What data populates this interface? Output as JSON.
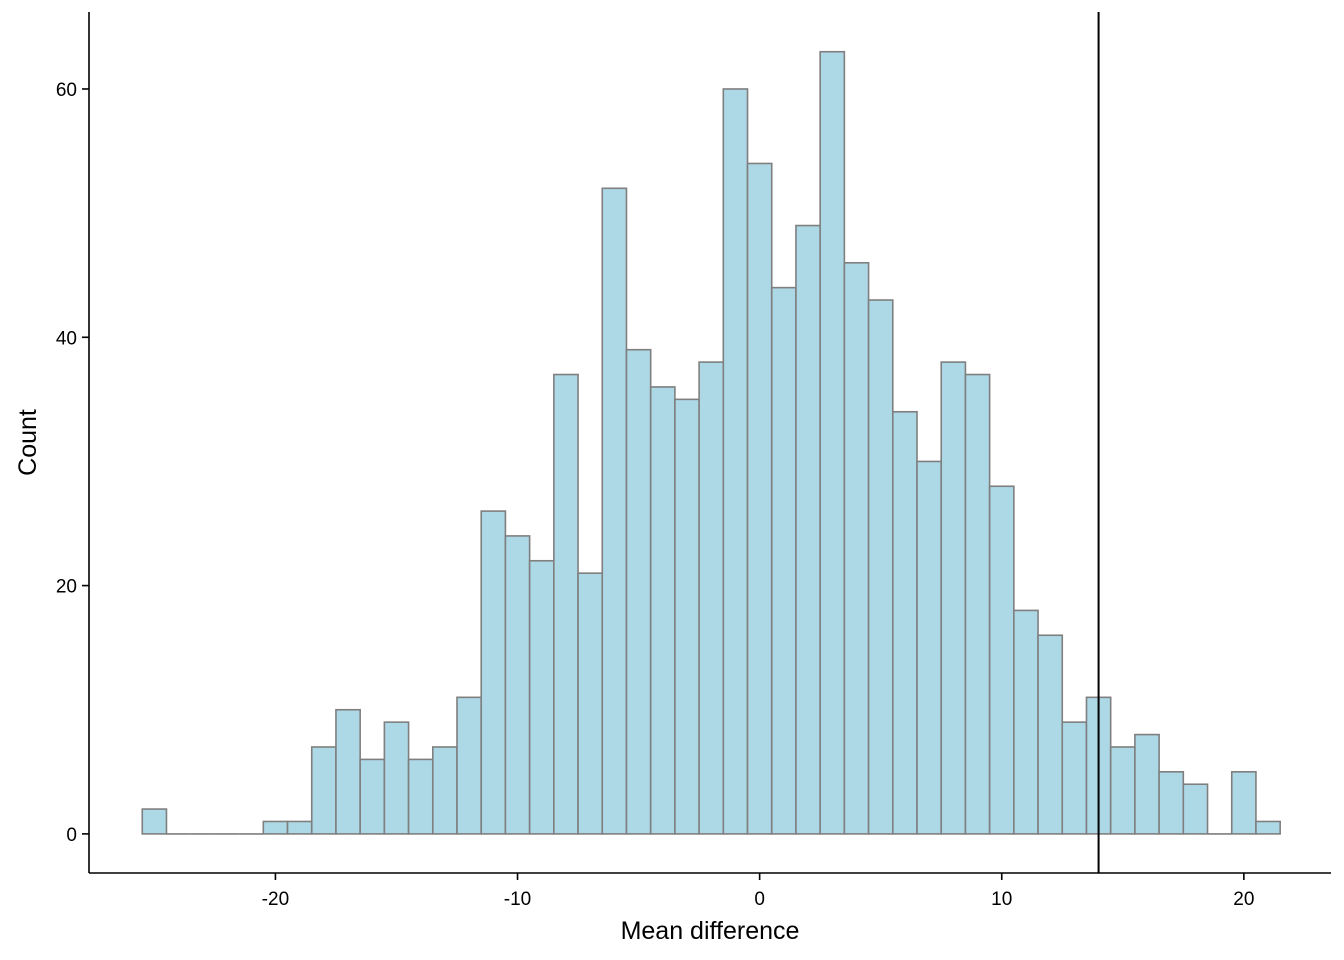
{
  "chart_data": {
    "type": "bar",
    "subtype": "histogram",
    "title": "",
    "xlabel": "Mean difference",
    "ylabel": "Count",
    "bin_width": 1,
    "bins": [
      {
        "x": -25,
        "count": 2
      },
      {
        "x": -24,
        "count": 0
      },
      {
        "x": -23,
        "count": 0
      },
      {
        "x": -22,
        "count": 0
      },
      {
        "x": -21,
        "count": 0
      },
      {
        "x": -20,
        "count": 1
      },
      {
        "x": -19,
        "count": 1
      },
      {
        "x": -18,
        "count": 7
      },
      {
        "x": -17,
        "count": 10
      },
      {
        "x": -16,
        "count": 6
      },
      {
        "x": -15,
        "count": 9
      },
      {
        "x": -14,
        "count": 6
      },
      {
        "x": -13,
        "count": 7
      },
      {
        "x": -12,
        "count": 11
      },
      {
        "x": -11,
        "count": 26
      },
      {
        "x": -10,
        "count": 24
      },
      {
        "x": -9,
        "count": 22
      },
      {
        "x": -8,
        "count": 37
      },
      {
        "x": -7,
        "count": 21
      },
      {
        "x": -6,
        "count": 52
      },
      {
        "x": -5,
        "count": 39
      },
      {
        "x": -4,
        "count": 36
      },
      {
        "x": -3,
        "count": 35
      },
      {
        "x": -2,
        "count": 38
      },
      {
        "x": -1,
        "count": 60
      },
      {
        "x": 0,
        "count": 54
      },
      {
        "x": 1,
        "count": 44
      },
      {
        "x": 2,
        "count": 49
      },
      {
        "x": 3,
        "count": 63
      },
      {
        "x": 4,
        "count": 46
      },
      {
        "x": 5,
        "count": 43
      },
      {
        "x": 6,
        "count": 34
      },
      {
        "x": 7,
        "count": 30
      },
      {
        "x": 8,
        "count": 38
      },
      {
        "x": 9,
        "count": 37
      },
      {
        "x": 10,
        "count": 28
      },
      {
        "x": 11,
        "count": 18
      },
      {
        "x": 12,
        "count": 16
      },
      {
        "x": 13,
        "count": 9
      },
      {
        "x": 14,
        "count": 11
      },
      {
        "x": 15,
        "count": 7
      },
      {
        "x": 16,
        "count": 8
      },
      {
        "x": 17,
        "count": 5
      },
      {
        "x": 18,
        "count": 4
      },
      {
        "x": 19,
        "count": 0
      },
      {
        "x": 20,
        "count": 5
      },
      {
        "x": 21,
        "count": 1
      }
    ],
    "reference_line_x": 14,
    "xlim": [
      -27.7,
      23.6
    ],
    "ylim": [
      -3.15,
      66.2
    ],
    "x_ticks": [
      -20,
      -10,
      0,
      10,
      20
    ],
    "x_tick_labels": [
      "-20",
      "-10",
      "0",
      "10",
      "20"
    ],
    "y_ticks": [
      0,
      20,
      40,
      60
    ],
    "y_tick_labels": [
      "0",
      "20",
      "40",
      "60"
    ],
    "bar_fill": "#add8e6",
    "bar_outline": "#7f7f7f",
    "grid": false,
    "legend": "none"
  }
}
